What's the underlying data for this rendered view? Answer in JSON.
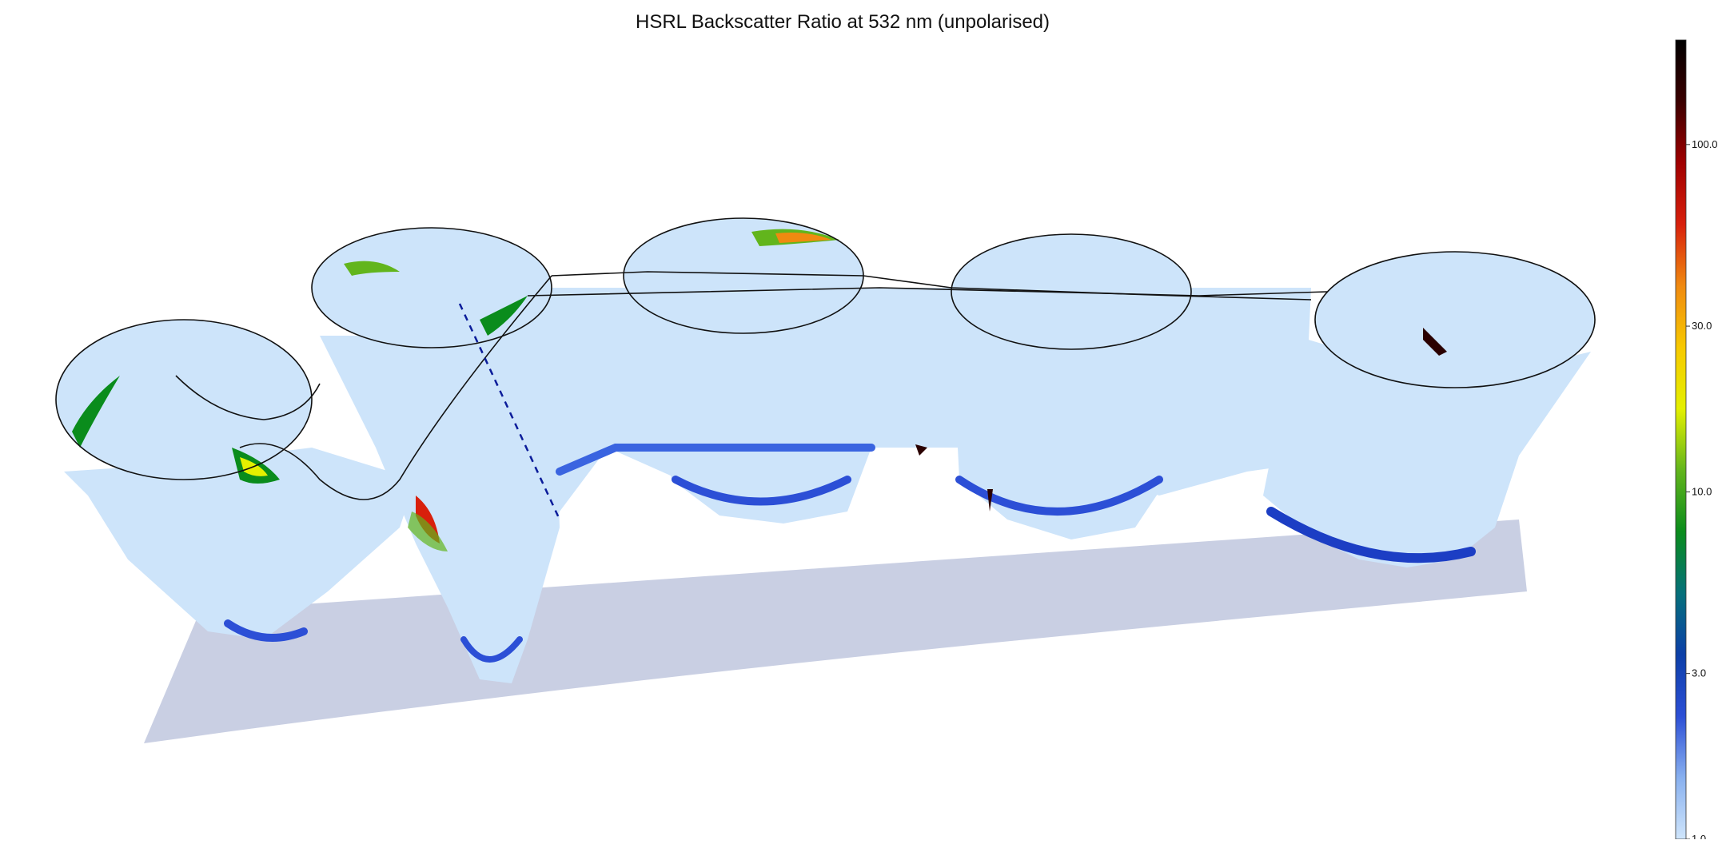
{
  "chart_data": {
    "type": "heatmap",
    "title": "HSRL Backscatter Ratio at 532 nm (unpolarised)",
    "description_style": "3D curtain plot along a looping flight track",
    "colorbar": {
      "scale": "log",
      "range": [
        1.0,
        200.0
      ],
      "ticks": [
        {
          "value": 1.0,
          "label": "1.0"
        },
        {
          "value": 3.0,
          "label": "3.0"
        },
        {
          "value": 10.0,
          "label": "10.0"
        },
        {
          "value": 30.0,
          "label": "30.0"
        },
        {
          "value": 100.0,
          "label": "100.0"
        }
      ],
      "colors": [
        "#cfe5fb",
        "#88b0ef",
        "#2c4fd6",
        "#0c3fa8",
        "#05707a",
        "#0a8c1c",
        "#62b51c",
        "#e4f000",
        "#f7c900",
        "#f08a10",
        "#d8200c",
        "#a00000",
        "#3a0000",
        "#000000"
      ]
    },
    "colors": {
      "curtain_fill": "#cde4fa",
      "surface_plane": "#c9cfe3",
      "flight_track": "#111111",
      "dashed_track": "#0b1c9a"
    }
  }
}
